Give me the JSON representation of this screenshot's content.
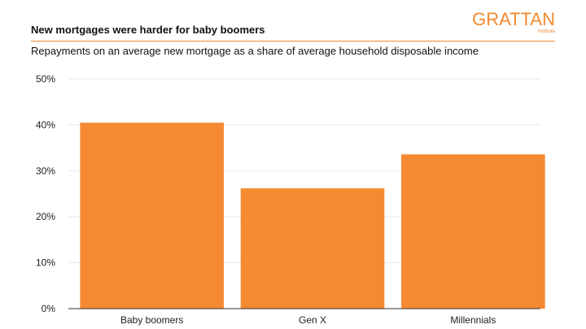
{
  "header": {
    "title": "New mortgages were harder for baby boomers",
    "subtitle": "Repayments on an average new mortgage as a share of average household disposable income"
  },
  "logo": {
    "name": "GRATTAN",
    "sub": "Institute"
  },
  "colors": {
    "accent": "#f28a2e",
    "bar": "#f58a32",
    "grid": "#e9e9e9",
    "axis": "#333333"
  },
  "chart_data": {
    "type": "bar",
    "title": "New mortgages were harder for baby boomers",
    "subtitle": "Repayments on an average new mortgage as a share of average household disposable income",
    "categories": [
      "Baby boomers",
      "Gen X",
      "Millennials"
    ],
    "values": [
      40.5,
      26.2,
      33.6
    ],
    "xlabel": "",
    "ylabel": "",
    "ylim": [
      0,
      50
    ],
    "yticks": [
      0,
      10,
      20,
      30,
      40,
      50
    ],
    "ytick_labels": [
      "0%",
      "10%",
      "20%",
      "30%",
      "40%",
      "50%"
    ],
    "grid": true,
    "legend": "none"
  }
}
